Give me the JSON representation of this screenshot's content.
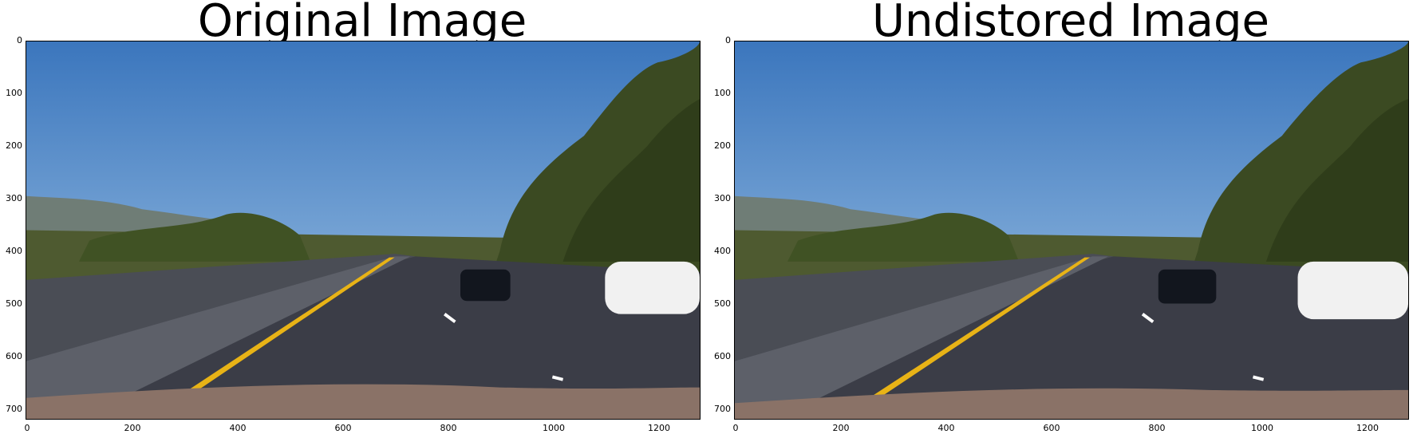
{
  "panels": [
    {
      "title": "Original Image",
      "yticks": [
        "0",
        "100",
        "200",
        "300",
        "400",
        "500",
        "600",
        "700"
      ],
      "xticks": [
        "0",
        "200",
        "400",
        "600",
        "800",
        "1000",
        "1200"
      ]
    },
    {
      "title": "Undistored Image",
      "yticks": [
        "0",
        "100",
        "200",
        "300",
        "400",
        "500",
        "600",
        "700"
      ],
      "xticks": [
        "0",
        "200",
        "400",
        "600",
        "800",
        "1000",
        "1200"
      ]
    }
  ],
  "colors": {
    "sky_top": "#3d79c0",
    "sky_bottom": "#9cc3e8",
    "hills": "#6d7c72",
    "trees": "#3d4a26",
    "road": "#3a3c46",
    "barrier": "#4a4d52",
    "yellow_line": "#e8b316",
    "hood": "#8a7267"
  }
}
